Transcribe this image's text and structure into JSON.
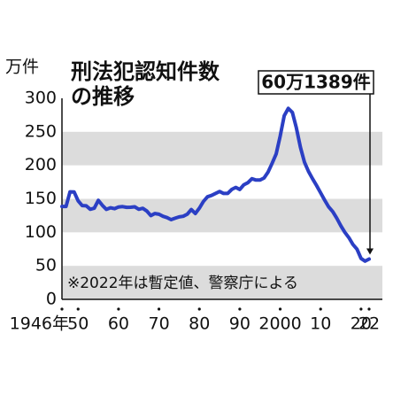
{
  "chart_data": {
    "type": "line",
    "title_lines": [
      "刑法犯認知件数",
      "の推移"
    ],
    "y_unit": "万件",
    "note": "※2022年は暫定値、警察庁による",
    "annotation": "60万1389件",
    "x": [
      1946,
      1947,
      1948,
      1949,
      1950,
      1951,
      1952,
      1953,
      1954,
      1955,
      1956,
      1957,
      1958,
      1959,
      1960,
      1961,
      1962,
      1963,
      1964,
      1965,
      1966,
      1967,
      1968,
      1969,
      1970,
      1971,
      1972,
      1973,
      1974,
      1975,
      1976,
      1977,
      1978,
      1979,
      1980,
      1981,
      1982,
      1983,
      1984,
      1985,
      1986,
      1987,
      1988,
      1989,
      1990,
      1991,
      1992,
      1993,
      1994,
      1995,
      1996,
      1997,
      1998,
      1999,
      2000,
      2001,
      2002,
      2003,
      2004,
      2005,
      2006,
      2007,
      2008,
      2009,
      2010,
      2011,
      2012,
      2013,
      2014,
      2015,
      2016,
      2017,
      2018,
      2019,
      2020,
      2021,
      2022
    ],
    "series": [
      {
        "name": "刑法犯認知件数",
        "color": "#2b3fc4",
        "values": [
          138.7,
          138.6,
          160.4,
          160.3,
          146.9,
          139.9,
          139.5,
          134.4,
          136.0,
          147.7,
          140.2,
          134.3,
          136.7,
          135.3,
          137.9,
          138.4,
          137.3,
          137.5,
          138.1,
          134.4,
          135.9,
          131.8,
          125,
          128,
          127,
          124,
          122,
          119,
          121,
          123,
          124,
          127,
          134,
          128,
          136,
          146,
          153,
          155,
          158,
          161,
          158,
          158,
          164,
          167,
          164,
          171,
          174,
          180,
          178,
          178,
          181,
          190,
          203,
          217,
          244,
          274,
          285,
          279,
          256,
          227,
          205,
          191,
          180,
          170,
          159,
          148,
          138,
          131,
          121,
          110,
          100,
          92,
          82,
          75,
          61,
          57,
          60.1389
        ]
      }
    ],
    "xlim": [
      1946,
      2022
    ],
    "xticks": [
      {
        "value": 1946,
        "label": "1946年"
      },
      {
        "value": 1950,
        "label": "50"
      },
      {
        "value": 1960,
        "label": "60"
      },
      {
        "value": 1970,
        "label": "70"
      },
      {
        "value": 1980,
        "label": "80"
      },
      {
        "value": 1990,
        "label": "90"
      },
      2000,
      {
        "value": 2010,
        "label": "10"
      },
      {
        "value": 2020,
        "label": "20"
      },
      {
        "value": 2022,
        "label": "22"
      }
    ],
    "ylim": [
      0,
      300
    ],
    "yticks": [
      0,
      50,
      100,
      150,
      200,
      250,
      300
    ],
    "grid": "bands"
  }
}
